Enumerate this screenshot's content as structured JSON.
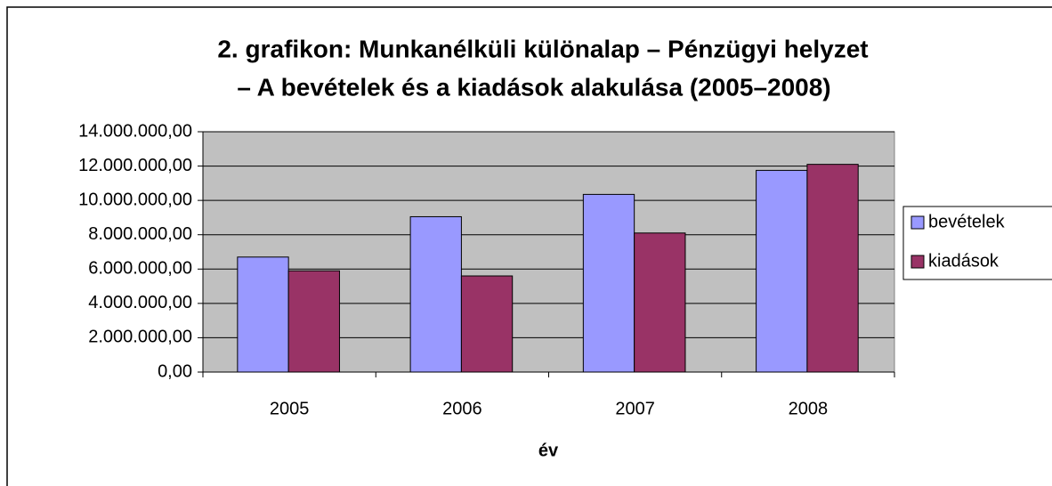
{
  "chart_data": {
    "type": "bar",
    "title": [
      "2. grafikon: Munkanélküli különalap – Pénzügyi helyzet",
      "– A bevételek és a kiadások alakulása (2005–2008)"
    ],
    "x_label": "év",
    "categories": [
      "2005",
      "2006",
      "2007",
      "2008"
    ],
    "series": [
      {
        "name": "bevételek",
        "color": "#9999ff",
        "values": [
          6700000,
          9050000,
          10350000,
          11750000
        ]
      },
      {
        "name": "kiadások",
        "color": "#993366",
        "values": [
          5900000,
          5600000,
          8100000,
          12100000
        ]
      }
    ],
    "ylim": [
      0,
      14000000
    ],
    "yticks": [
      {
        "value": 0,
        "label": "0,00"
      },
      {
        "value": 2000000,
        "label": "2.000.000,00"
      },
      {
        "value": 4000000,
        "label": "4.000.000,00"
      },
      {
        "value": 6000000,
        "label": "6.000.000,00"
      },
      {
        "value": 8000000,
        "label": "8.000.000,00"
      },
      {
        "value": 10000000,
        "label": "10.000.000,00"
      },
      {
        "value": 12000000,
        "label": "12.000.000,00"
      },
      {
        "value": 14000000,
        "label": "14.000.000,00"
      }
    ],
    "grid": true,
    "legend": "right",
    "plot_background": "#c0c0c0"
  }
}
